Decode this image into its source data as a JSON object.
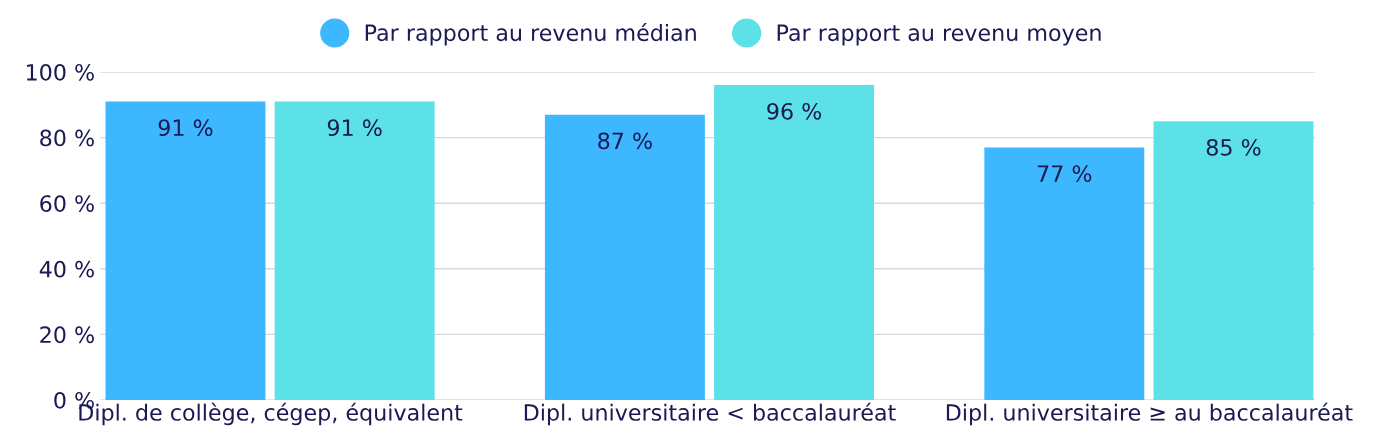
{
  "chart_data": {
    "type": "bar",
    "categories": [
      "Dipl. de collège, cégep, équivalent",
      "Dipl. universitaire < baccalauréat",
      "Dipl. universitaire ≥ au baccalauréat"
    ],
    "series": [
      {
        "name": "Par rapport au revenu médian",
        "color": "#3db8fe",
        "values": [
          91,
          87,
          77
        ],
        "value_labels": [
          "91 %",
          "87 %",
          "77 %"
        ]
      },
      {
        "name": "Par rapport au revenu moyen",
        "color": "#5ce1e6",
        "values": [
          91,
          96,
          85
        ],
        "value_labels": [
          "91 %",
          "96 %",
          "85 %"
        ]
      }
    ],
    "ylim": [
      0,
      100
    ],
    "yticks": [
      {
        "value": 0,
        "label": "0 %"
      },
      {
        "value": 20,
        "label": "20 %"
      },
      {
        "value": 40,
        "label": "40 %"
      },
      {
        "value": 60,
        "label": "60 %"
      },
      {
        "value": 80,
        "label": "80 %"
      },
      {
        "value": 100,
        "label": "100 %"
      }
    ],
    "grid": "y",
    "legend": "top"
  }
}
